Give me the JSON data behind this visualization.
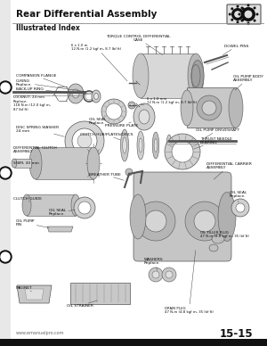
{
  "title": "Rear Differential Assembly",
  "subtitle": "Illustrated Index",
  "page_number": "15-15",
  "website": "www.emanualpro.com",
  "bg_color": "#f5f5f0",
  "text_color": "#111111",
  "line_color": "#333333",
  "title_fontsize": 7.5,
  "subtitle_fontsize": 5.5,
  "label_fontsize": 3.2,
  "small_label_fontsize": 2.8,
  "page_num_fontsize": 9.0
}
